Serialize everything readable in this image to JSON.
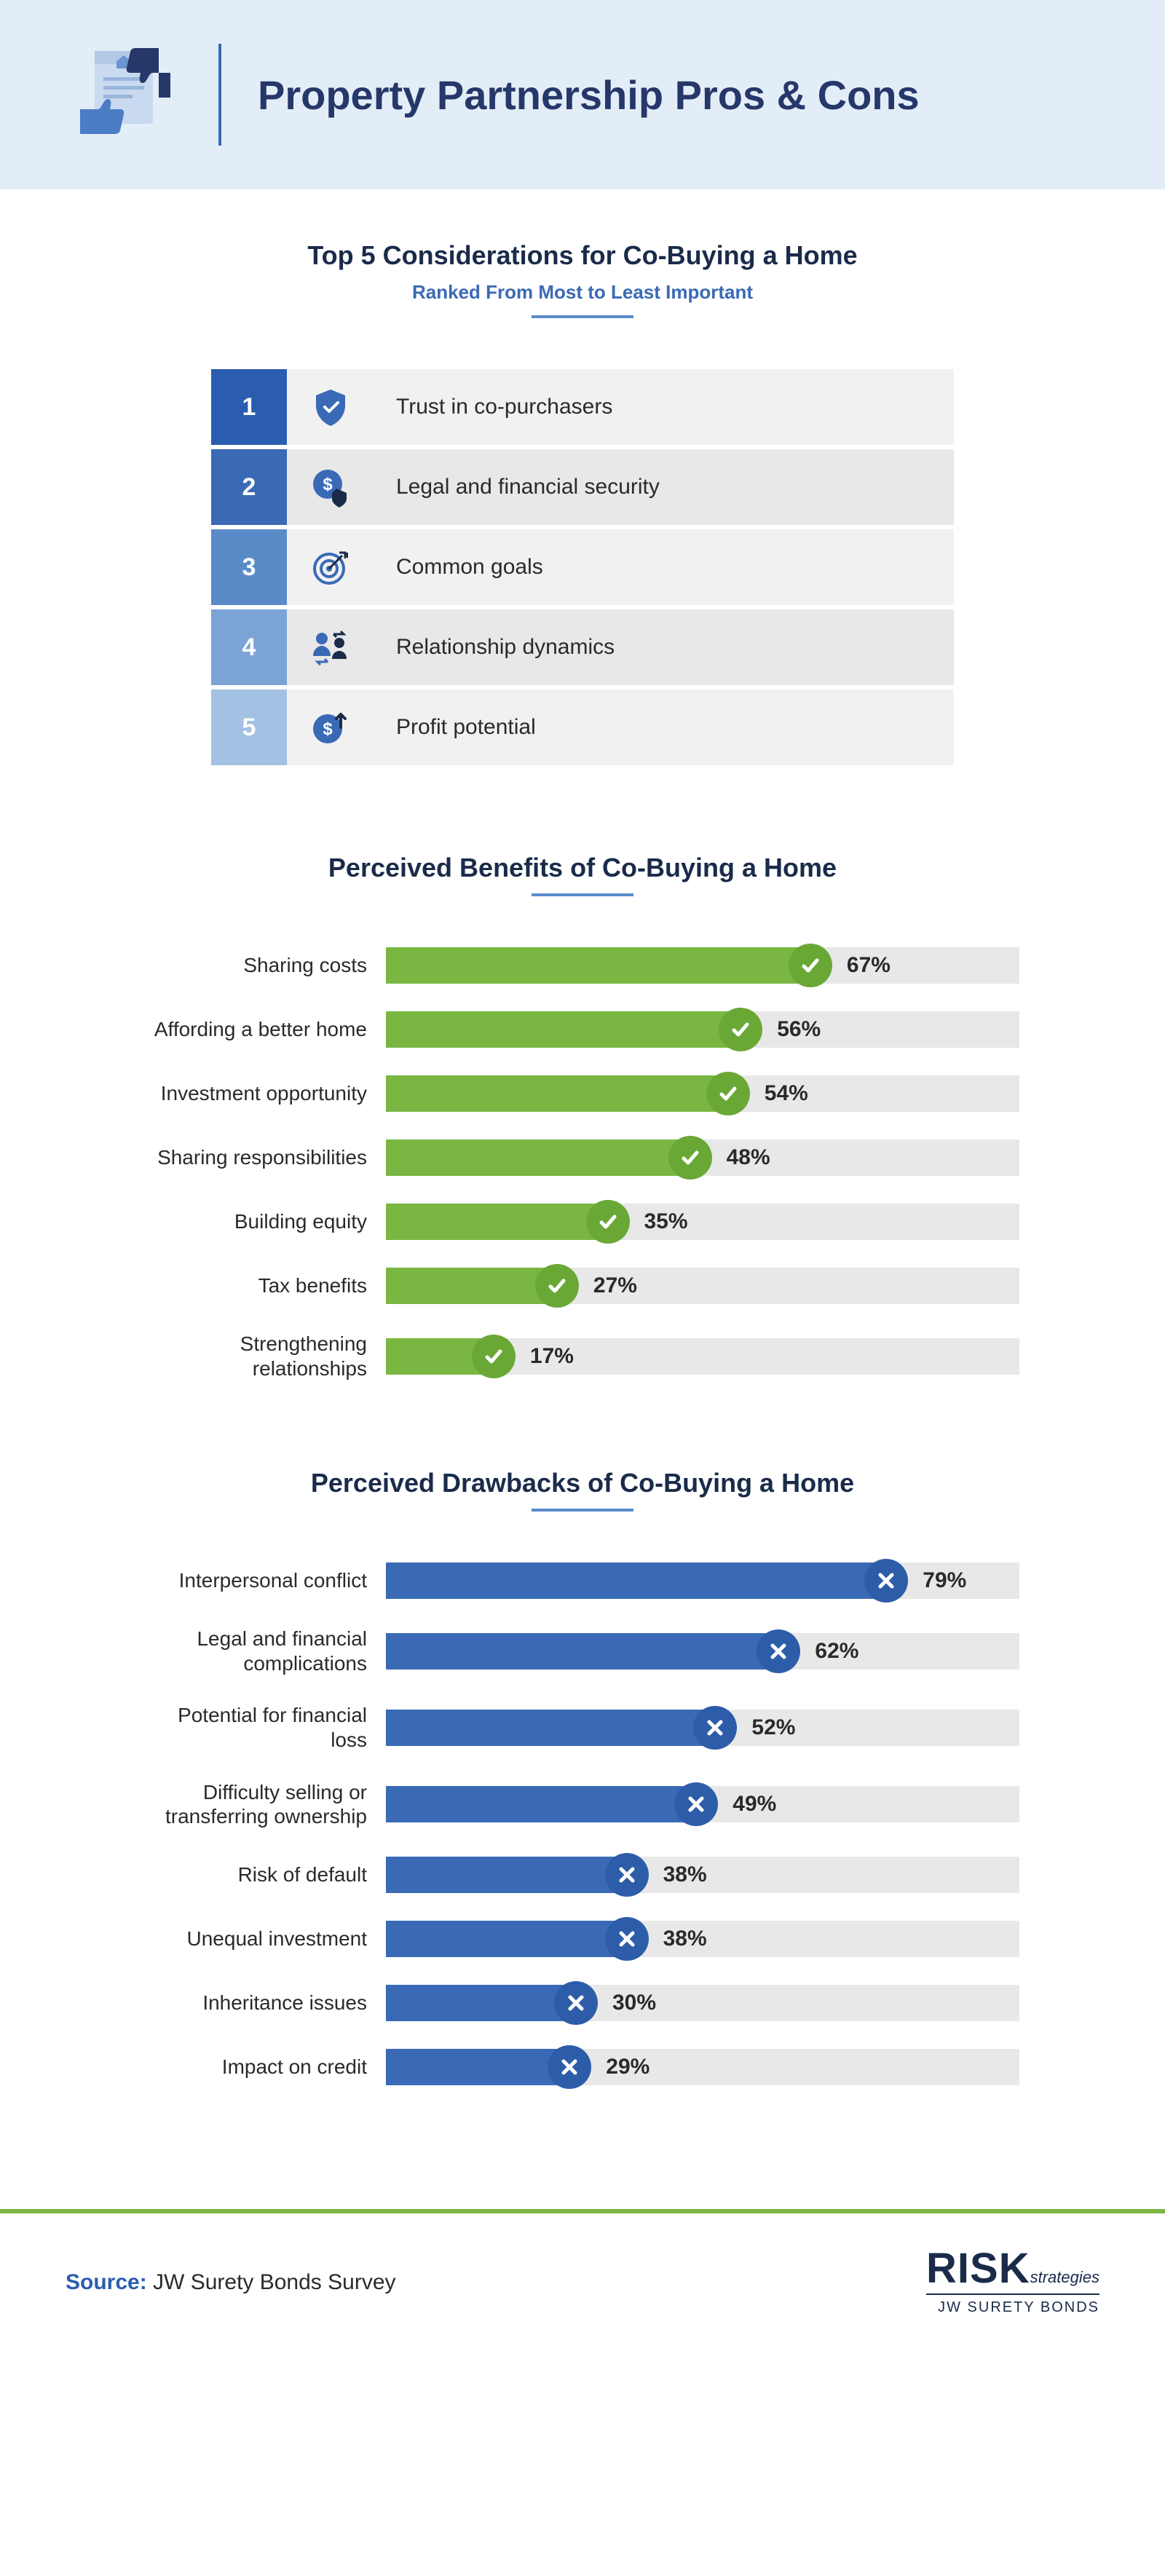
{
  "colors": {
    "header_bg": "#e3edf7",
    "title": "#26376a",
    "divider": "#3a6ab5",
    "section_title": "#1a2b4a",
    "subtitle": "#3a6ab5",
    "underline": "#5a8bc9",
    "row_bg_even": "#f1f1f1",
    "row_bg_odd": "#e8e8e8",
    "benefit_bar": "#7ab642",
    "benefit_cap": "#6aa836",
    "drawback_bar": "#3a6ab5",
    "drawback_cap": "#2d5da8",
    "track_bg": "#e8e8e8",
    "footer_rule": "#7ab642",
    "text": "#2a2a2a"
  },
  "header": {
    "title": "Property Partnership Pros & Cons"
  },
  "ranked": {
    "title": "Top 5 Considerations for Co-Buying a Home",
    "subtitle": "Ranked From Most to Least Important",
    "num_colors": [
      "#2a5db0",
      "#3a6ab5",
      "#5a8bc9",
      "#7ba3d6",
      "#a3c1e3"
    ],
    "icon_ids": [
      "shield-check",
      "dollar-shield",
      "target",
      "people-swap",
      "dollar-up"
    ],
    "items": [
      {
        "n": "1",
        "label": "Trust in co-purchasers"
      },
      {
        "n": "2",
        "label": "Legal and financial security"
      },
      {
        "n": "3",
        "label": "Common goals"
      },
      {
        "n": "4",
        "label": "Relationship dynamics"
      },
      {
        "n": "5",
        "label": "Profit potential"
      }
    ]
  },
  "benefits": {
    "title": "Perceived Benefits of Co-Buying a Home",
    "max": 100,
    "rows": [
      {
        "label": "Sharing costs",
        "value": 67
      },
      {
        "label": "Affording a better home",
        "value": 56
      },
      {
        "label": "Investment opportunity",
        "value": 54
      },
      {
        "label": "Sharing responsibilities",
        "value": 48
      },
      {
        "label": "Building equity",
        "value": 35
      },
      {
        "label": "Tax benefits",
        "value": 27
      },
      {
        "label": "Strengthening relationships",
        "value": 17
      }
    ]
  },
  "drawbacks": {
    "title": "Perceived Drawbacks of Co-Buying a Home",
    "max": 100,
    "rows": [
      {
        "label": "Interpersonal conflict",
        "value": 79
      },
      {
        "label": "Legal and financial complications",
        "value": 62
      },
      {
        "label": "Potential for financial loss",
        "value": 52
      },
      {
        "label": "Difficulty selling or transferring ownership",
        "value": 49
      },
      {
        "label": "Risk of default",
        "value": 38
      },
      {
        "label": "Unequal investment",
        "value": 38
      },
      {
        "label": "Inheritance issues",
        "value": 30
      },
      {
        "label": "Impact on credit",
        "value": 29
      }
    ]
  },
  "footer": {
    "source_label": "Source:",
    "source_text": "JW Surety Bonds Survey",
    "logo_main": "RISK",
    "logo_strat": "strategies",
    "logo_sub": "JW SURETY BONDS"
  }
}
